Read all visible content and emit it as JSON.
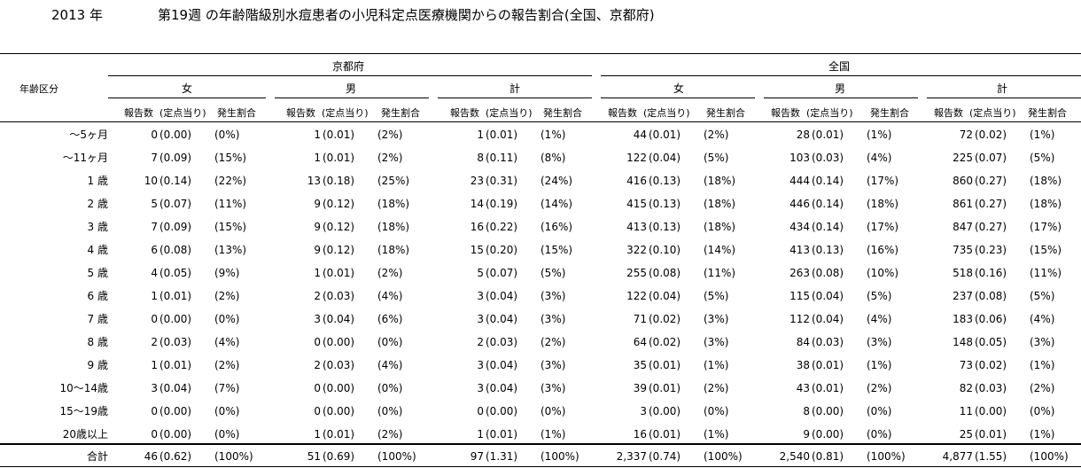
{
  "title": {
    "year": "2013 年",
    "text": "第19週 の年齢階級別水痘患者の小児科定点医療機関からの報告割合(全国、京都府)"
  },
  "header": {
    "age_label": "年齢区分",
    "region_kyoto": "京都府",
    "region_national": "全国",
    "sex_female": "女",
    "sex_male": "男",
    "sex_total": "計",
    "col_count": "報告数",
    "col_per_site": "(定点当り)",
    "col_ratio": "発生割合"
  },
  "rows": [
    {
      "age": "〜5ヶ月",
      "cells": [
        [
          "0",
          "(0.00)",
          "(0%)"
        ],
        [
          "1",
          "(0.01)",
          "(2%)"
        ],
        [
          "1",
          "(0.01)",
          "(1%)"
        ],
        [
          "44",
          "(0.01)",
          "(2%)"
        ],
        [
          "28",
          "(0.01)",
          "(1%)"
        ],
        [
          "72",
          "(0.02)",
          "(1%)"
        ]
      ]
    },
    {
      "age": "〜11ヶ月",
      "cells": [
        [
          "7",
          "(0.09)",
          "(15%)"
        ],
        [
          "1",
          "(0.01)",
          "(2%)"
        ],
        [
          "8",
          "(0.11)",
          "(8%)"
        ],
        [
          "122",
          "(0.04)",
          "(5%)"
        ],
        [
          "103",
          "(0.03)",
          "(4%)"
        ],
        [
          "225",
          "(0.07)",
          "(5%)"
        ]
      ]
    },
    {
      "age": "1 歳",
      "cells": [
        [
          "10",
          "(0.14)",
          "(22%)"
        ],
        [
          "13",
          "(0.18)",
          "(25%)"
        ],
        [
          "23",
          "(0.31)",
          "(24%)"
        ],
        [
          "416",
          "(0.13)",
          "(18%)"
        ],
        [
          "444",
          "(0.14)",
          "(17%)"
        ],
        [
          "860",
          "(0.27)",
          "(18%)"
        ]
      ]
    },
    {
      "age": "2 歳",
      "cells": [
        [
          "5",
          "(0.07)",
          "(11%)"
        ],
        [
          "9",
          "(0.12)",
          "(18%)"
        ],
        [
          "14",
          "(0.19)",
          "(14%)"
        ],
        [
          "415",
          "(0.13)",
          "(18%)"
        ],
        [
          "446",
          "(0.14)",
          "(18%)"
        ],
        [
          "861",
          "(0.27)",
          "(18%)"
        ]
      ]
    },
    {
      "age": "3 歳",
      "cells": [
        [
          "7",
          "(0.09)",
          "(15%)"
        ],
        [
          "9",
          "(0.12)",
          "(18%)"
        ],
        [
          "16",
          "(0.22)",
          "(16%)"
        ],
        [
          "413",
          "(0.13)",
          "(18%)"
        ],
        [
          "434",
          "(0.14)",
          "(17%)"
        ],
        [
          "847",
          "(0.27)",
          "(17%)"
        ]
      ]
    },
    {
      "age": "4 歳",
      "cells": [
        [
          "6",
          "(0.08)",
          "(13%)"
        ],
        [
          "9",
          "(0.12)",
          "(18%)"
        ],
        [
          "15",
          "(0.20)",
          "(15%)"
        ],
        [
          "322",
          "(0.10)",
          "(14%)"
        ],
        [
          "413",
          "(0.13)",
          "(16%)"
        ],
        [
          "735",
          "(0.23)",
          "(15%)"
        ]
      ]
    },
    {
      "age": "5 歳",
      "cells": [
        [
          "4",
          "(0.05)",
          "(9%)"
        ],
        [
          "1",
          "(0.01)",
          "(2%)"
        ],
        [
          "5",
          "(0.07)",
          "(5%)"
        ],
        [
          "255",
          "(0.08)",
          "(11%)"
        ],
        [
          "263",
          "(0.08)",
          "(10%)"
        ],
        [
          "518",
          "(0.16)",
          "(11%)"
        ]
      ]
    },
    {
      "age": "6 歳",
      "cells": [
        [
          "1",
          "(0.01)",
          "(2%)"
        ],
        [
          "2",
          "(0.03)",
          "(4%)"
        ],
        [
          "3",
          "(0.04)",
          "(3%)"
        ],
        [
          "122",
          "(0.04)",
          "(5%)"
        ],
        [
          "115",
          "(0.04)",
          "(5%)"
        ],
        [
          "237",
          "(0.08)",
          "(5%)"
        ]
      ]
    },
    {
      "age": "7 歳",
      "cells": [
        [
          "0",
          "(0.00)",
          "(0%)"
        ],
        [
          "3",
          "(0.04)",
          "(6%)"
        ],
        [
          "3",
          "(0.04)",
          "(3%)"
        ],
        [
          "71",
          "(0.02)",
          "(3%)"
        ],
        [
          "112",
          "(0.04)",
          "(4%)"
        ],
        [
          "183",
          "(0.06)",
          "(4%)"
        ]
      ]
    },
    {
      "age": "8 歳",
      "cells": [
        [
          "2",
          "(0.03)",
          "(4%)"
        ],
        [
          "0",
          "(0.00)",
          "(0%)"
        ],
        [
          "2",
          "(0.03)",
          "(2%)"
        ],
        [
          "64",
          "(0.02)",
          "(3%)"
        ],
        [
          "84",
          "(0.03)",
          "(3%)"
        ],
        [
          "148",
          "(0.05)",
          "(3%)"
        ]
      ]
    },
    {
      "age": "9 歳",
      "cells": [
        [
          "1",
          "(0.01)",
          "(2%)"
        ],
        [
          "2",
          "(0.03)",
          "(4%)"
        ],
        [
          "3",
          "(0.04)",
          "(3%)"
        ],
        [
          "35",
          "(0.01)",
          "(1%)"
        ],
        [
          "38",
          "(0.01)",
          "(1%)"
        ],
        [
          "73",
          "(0.02)",
          "(1%)"
        ]
      ]
    },
    {
      "age": "10〜14歳",
      "cells": [
        [
          "3",
          "(0.04)",
          "(7%)"
        ],
        [
          "0",
          "(0.00)",
          "(0%)"
        ],
        [
          "3",
          "(0.04)",
          "(3%)"
        ],
        [
          "39",
          "(0.01)",
          "(2%)"
        ],
        [
          "43",
          "(0.01)",
          "(2%)"
        ],
        [
          "82",
          "(0.03)",
          "(2%)"
        ]
      ]
    },
    {
      "age": "15〜19歳",
      "cells": [
        [
          "0",
          "(0.00)",
          "(0%)"
        ],
        [
          "0",
          "(0.00)",
          "(0%)"
        ],
        [
          "0",
          "(0.00)",
          "(0%)"
        ],
        [
          "3",
          "(0.00)",
          "(0%)"
        ],
        [
          "8",
          "(0.00)",
          "(0%)"
        ],
        [
          "11",
          "(0.00)",
          "(0%)"
        ]
      ]
    },
    {
      "age": "20歳以上",
      "cells": [
        [
          "0",
          "(0.00)",
          "(0%)"
        ],
        [
          "1",
          "(0.01)",
          "(2%)"
        ],
        [
          "1",
          "(0.01)",
          "(1%)"
        ],
        [
          "16",
          "(0.01)",
          "(1%)"
        ],
        [
          "9",
          "(0.00)",
          "(0%)"
        ],
        [
          "25",
          "(0.01)",
          "(1%)"
        ]
      ]
    }
  ],
  "total": {
    "age": "合計",
    "cells": [
      [
        "46",
        "(0.62)",
        "(100%)"
      ],
      [
        "51",
        "(0.69)",
        "(100%)"
      ],
      [
        "97",
        "(1.31)",
        "(100%)"
      ],
      [
        "2,337",
        "(0.74)",
        "(100%)"
      ],
      [
        "2,540",
        "(0.81)",
        "(100%)"
      ],
      [
        "4,877",
        "(1.55)",
        "(100%)"
      ]
    ]
  }
}
